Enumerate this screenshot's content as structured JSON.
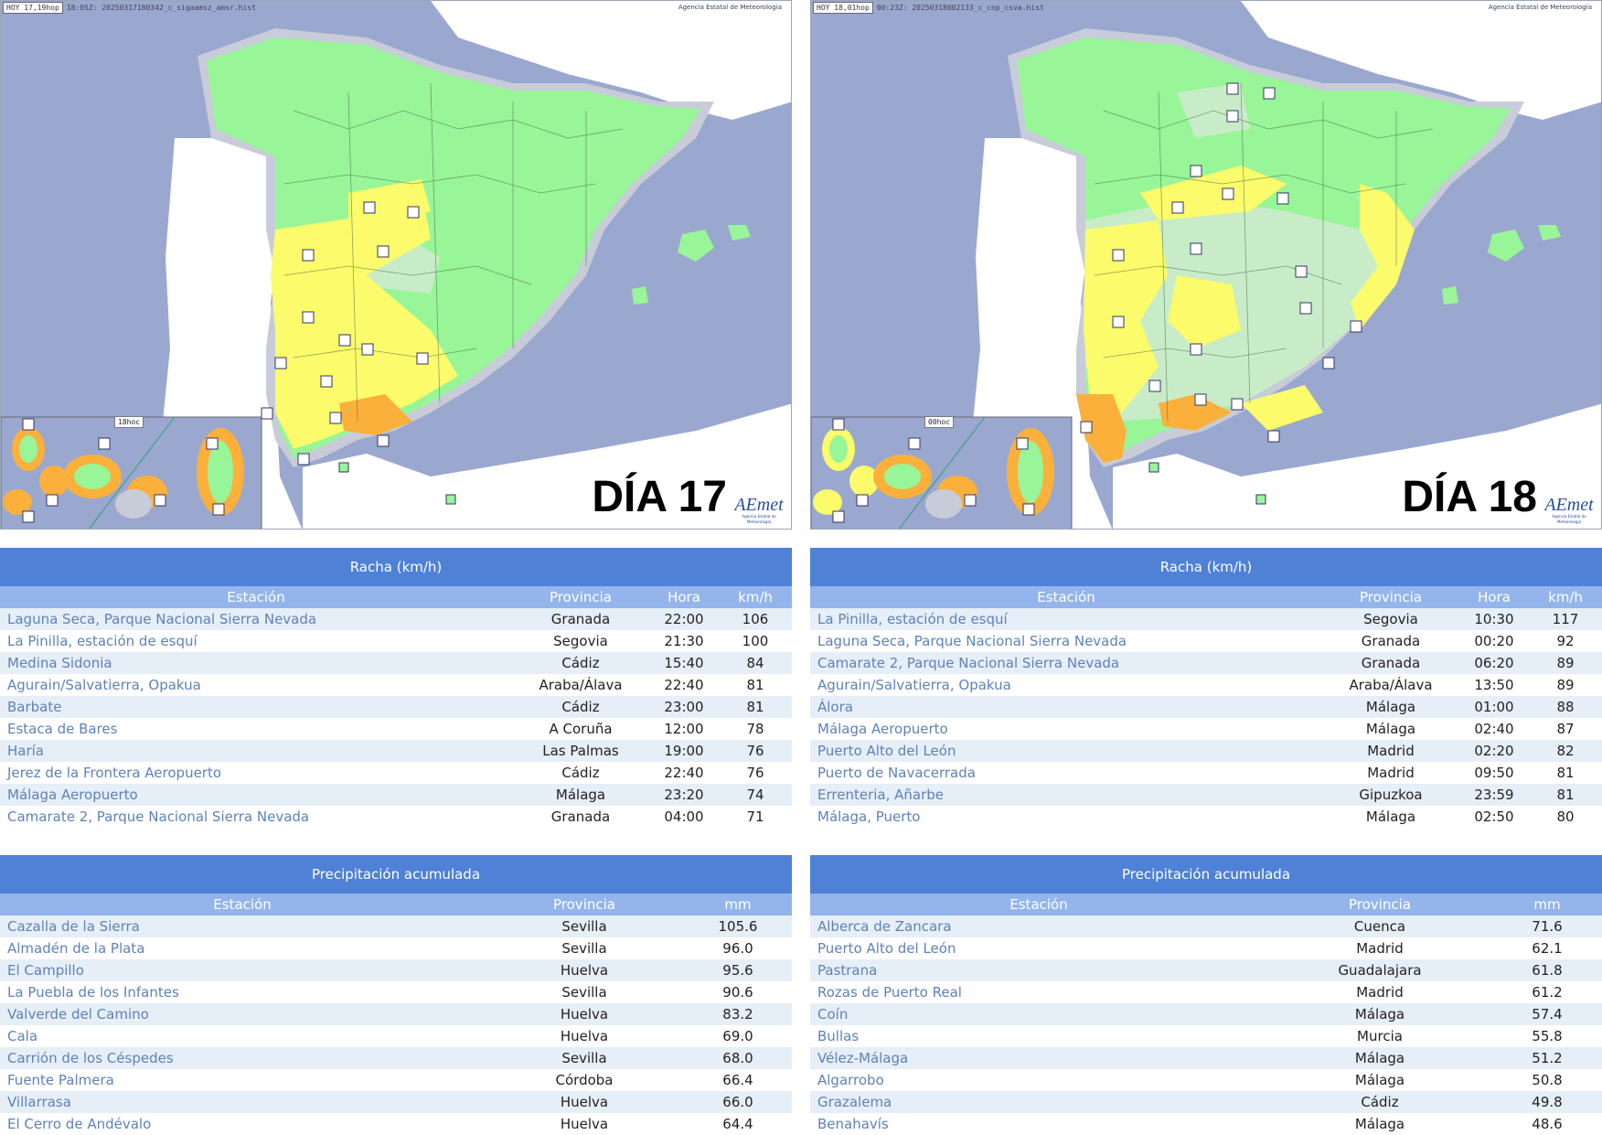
{
  "panels": [
    {
      "map": {
        "header_day": "HOY 17,19hop",
        "header_file": "18:05Z: 20250317180342_c_sigaamsz_amsr.hist",
        "agency": "Agencia Estatal de Meteorología",
        "inset_label": "18hoc",
        "day_label": "DÍA 17",
        "logo_text": "AEmet",
        "logo_sub": "Agencia Estatal de Meteorología",
        "colors": {
          "sea": "#9aa8d0",
          "land_other": "#ffffff",
          "green": "#98f598",
          "lightgreen": "#c8ecc8",
          "yellow": "#fbfb6b",
          "orange": "#fbb03b"
        }
      },
      "racha": {
        "title": "Racha (km/h)",
        "headers": {
          "station": "Estación",
          "province": "Provincia",
          "time": "Hora",
          "value": "km/h"
        },
        "rows": [
          {
            "station": "Laguna Seca, Parque Nacional Sierra Nevada",
            "province": "Granada",
            "time": "22:00",
            "value": "106"
          },
          {
            "station": "La Pinilla, estación de esquí",
            "province": "Segovia",
            "time": "21:30",
            "value": "100"
          },
          {
            "station": "Medina Sidonia",
            "province": "Cádiz",
            "time": "15:40",
            "value": "84"
          },
          {
            "station": "Agurain/Salvatierra, Opakua",
            "province": "Araba/Álava",
            "time": "22:40",
            "value": "81"
          },
          {
            "station": "Barbate",
            "province": "Cádiz",
            "time": "23:00",
            "value": "81"
          },
          {
            "station": "Estaca de Bares",
            "province": "A Coruña",
            "time": "12:00",
            "value": "78"
          },
          {
            "station": "Haría",
            "province": "Las Palmas",
            "time": "19:00",
            "value": "76"
          },
          {
            "station": "Jerez de la Frontera Aeropuerto",
            "province": "Cádiz",
            "time": "22:40",
            "value": "76"
          },
          {
            "station": "Málaga Aeropuerto",
            "province": "Málaga",
            "time": "23:20",
            "value": "74"
          },
          {
            "station": "Camarate 2, Parque Nacional Sierra Nevada",
            "province": "Granada",
            "time": "04:00",
            "value": "71"
          }
        ]
      },
      "prec": {
        "title": "Precipitación acumulada",
        "headers": {
          "station": "Estación",
          "province": "Provincia",
          "value": "mm"
        },
        "rows": [
          {
            "station": "Cazalla de la Sierra",
            "province": "Sevilla",
            "value": "105.6"
          },
          {
            "station": "Almadén de la Plata",
            "province": "Sevilla",
            "value": "96.0"
          },
          {
            "station": "El Campillo",
            "province": "Huelva",
            "value": "95.6"
          },
          {
            "station": "La Puebla de los Infantes",
            "province": "Sevilla",
            "value": "90.6"
          },
          {
            "station": "Valverde del Camino",
            "province": "Huelva",
            "value": "83.2"
          },
          {
            "station": "Cala",
            "province": "Huelva",
            "value": "69.0"
          },
          {
            "station": "Carrión de los Céspedes",
            "province": "Sevilla",
            "value": "68.0"
          },
          {
            "station": "Fuente Palmera",
            "province": "Córdoba",
            "value": "66.4"
          },
          {
            "station": "Villarrasa",
            "province": "Huelva",
            "value": "66.0"
          },
          {
            "station": "El Cerro de Andévalo",
            "province": "Huelva",
            "value": "64.4"
          }
        ]
      }
    },
    {
      "map": {
        "header_day": "HOY 18,01hop",
        "header_file": "00:23Z: 20250318002133_c_cnp_csva.hist",
        "agency": "Agencia Estatal de Meteorología",
        "inset_label": "00hoc",
        "day_label": "DÍA 18",
        "logo_text": "AEmet",
        "logo_sub": "Agencia Estatal de Meteorología",
        "colors": {
          "sea": "#9aa8d0",
          "land_other": "#ffffff",
          "green": "#98f598",
          "lightgreen": "#c8ecc8",
          "yellow": "#fbfb6b",
          "orange": "#fbb03b"
        }
      },
      "racha": {
        "title": "Racha (km/h)",
        "headers": {
          "station": "Estación",
          "province": "Provincia",
          "time": "Hora",
          "value": "km/h"
        },
        "rows": [
          {
            "station": "La Pinilla, estación de esquí",
            "province": "Segovia",
            "time": "10:30",
            "value": "117"
          },
          {
            "station": "Laguna Seca, Parque Nacional Sierra Nevada",
            "province": "Granada",
            "time": "00:20",
            "value": "92"
          },
          {
            "station": "Camarate 2, Parque Nacional Sierra Nevada",
            "province": "Granada",
            "time": "06:20",
            "value": "89"
          },
          {
            "station": "Agurain/Salvatierra, Opakua",
            "province": "Araba/Álava",
            "time": "13:50",
            "value": "89"
          },
          {
            "station": "Álora",
            "province": "Málaga",
            "time": "01:00",
            "value": "88"
          },
          {
            "station": "Málaga Aeropuerto",
            "province": "Málaga",
            "time": "02:40",
            "value": "87"
          },
          {
            "station": "Puerto Alto del León",
            "province": "Madrid",
            "time": "02:20",
            "value": "82"
          },
          {
            "station": "Puerto de Navacerrada",
            "province": "Madrid",
            "time": "09:50",
            "value": "81"
          },
          {
            "station": "Errenteria, Añarbe",
            "province": "Gipuzkoa",
            "time": "23:59",
            "value": "81"
          },
          {
            "station": "Málaga, Puerto",
            "province": "Málaga",
            "time": "02:50",
            "value": "80"
          }
        ]
      },
      "prec": {
        "title": "Precipitación acumulada",
        "headers": {
          "station": "Estación",
          "province": "Provincia",
          "value": "mm"
        },
        "rows": [
          {
            "station": "Alberca de Zancara",
            "province": "Cuenca",
            "value": "71.6"
          },
          {
            "station": "Puerto Alto del León",
            "province": "Madrid",
            "value": "62.1"
          },
          {
            "station": "Pastrana",
            "province": "Guadalajara",
            "value": "61.8"
          },
          {
            "station": "Rozas de Puerto Real",
            "province": "Madrid",
            "value": "61.2"
          },
          {
            "station": "Coín",
            "province": "Málaga",
            "value": "57.4"
          },
          {
            "station": "Bullas",
            "province": "Murcia",
            "value": "55.8"
          },
          {
            "station": "Vélez-Málaga",
            "province": "Málaga",
            "value": "51.2"
          },
          {
            "station": "Algarrobo",
            "province": "Málaga",
            "value": "50.8"
          },
          {
            "station": "Grazalema",
            "province": "Cádiz",
            "value": "49.8"
          },
          {
            "station": "Benahavís",
            "province": "Málaga",
            "value": "48.6"
          }
        ]
      }
    }
  ]
}
